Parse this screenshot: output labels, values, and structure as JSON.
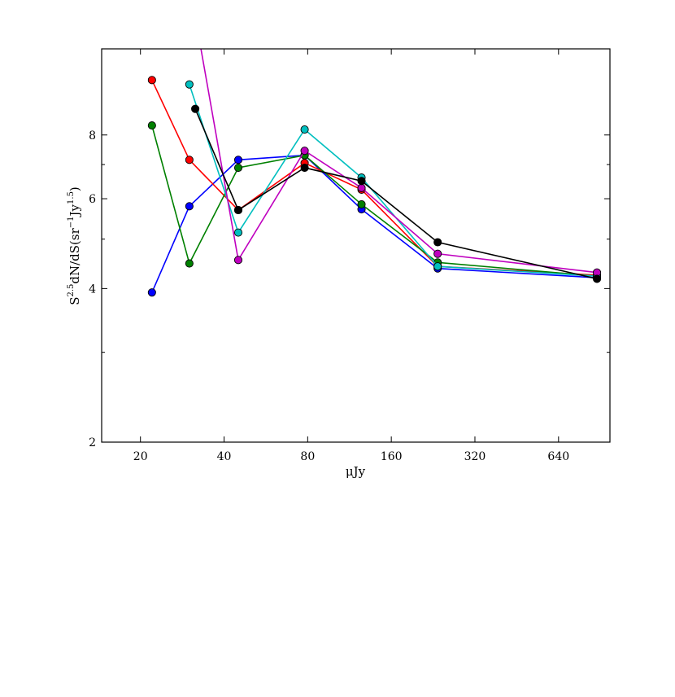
{
  "chart_data": {
    "type": "line",
    "xlabel": "μJy",
    "ylabel": "S^2.5 dN/dS (sr^-1 Jy^1.5)",
    "x_scale": "log2",
    "y_scale": "log",
    "xlim": [
      14.5,
      980
    ],
    "ylim": [
      2,
      11.8
    ],
    "x_ticks": [
      20,
      40,
      80,
      160,
      320,
      640
    ],
    "x_tick_labels": [
      "20",
      "40",
      "80",
      "160",
      "320",
      "640"
    ],
    "y_ticks": [
      2,
      4,
      6,
      8
    ],
    "y_tick_labels": [
      "2",
      "4",
      "6",
      "8"
    ],
    "y_minor_ticks": [
      3,
      5,
      7
    ],
    "grid": false,
    "legend": "none",
    "series": [
      {
        "color": "#0000ff",
        "x": [
          22,
          30,
          45,
          78,
          125,
          235,
          880
        ],
        "y": [
          3.93,
          5.8,
          7.15,
          7.3,
          5.72,
          4.38,
          4.2
        ]
      },
      {
        "color": "#ff0000",
        "x": [
          22,
          30,
          45,
          78,
          125,
          235,
          880
        ],
        "y": [
          10.25,
          7.15,
          5.7,
          7.05,
          6.25,
          4.42,
          4.25
        ]
      },
      {
        "color": "#008000",
        "x": [
          22,
          30,
          45,
          78,
          125,
          235,
          880
        ],
        "y": [
          8.35,
          4.48,
          6.9,
          7.3,
          5.85,
          4.5,
          4.23
        ]
      },
      {
        "color": "#00bfbf",
        "x": [
          30,
          45,
          78,
          125,
          235,
          880
        ],
        "y": [
          10.05,
          5.15,
          8.2,
          6.6,
          4.42,
          4.23
        ]
      },
      {
        "color": "#bf00bf",
        "x": [
          32,
          45,
          78,
          125,
          235,
          880
        ],
        "y": [
          13,
          4.55,
          7.45,
          6.3,
          4.68,
          4.3
        ]
      },
      {
        "color": "#000000",
        "x": [
          31.5,
          45,
          78,
          125,
          235,
          880
        ],
        "y": [
          9.0,
          5.7,
          6.9,
          6.5,
          4.93,
          4.18
        ]
      }
    ]
  }
}
